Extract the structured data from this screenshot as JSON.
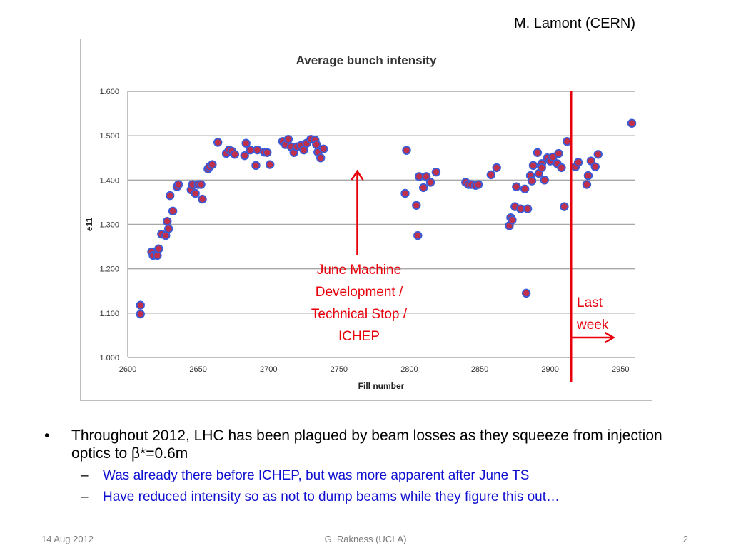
{
  "slide": {
    "attribution": "M. Lamont (CERN)",
    "annotations": {
      "june": [
        "June Machine",
        "Development /",
        "Technical Stop /",
        "ICHEP"
      ],
      "last": [
        "Last",
        "week"
      ]
    },
    "bullets": [
      {
        "text": "Throughout 2012, LHC has been plagued by beam losses as they squeeze from injection optics to β*=0.6m",
        "subs": [
          "Was already there before ICHEP, but was more apparent after June TS",
          "Have reduced intensity so as not to dump beams while they figure this out…"
        ]
      }
    ],
    "footer": {
      "date": "14 Aug 2012",
      "author": "G. Rakness (UCLA)",
      "page": "2"
    },
    "bullet_symbol": "•",
    "sub_symbol": "–"
  },
  "chart_data": {
    "type": "scatter",
    "title": "Average bunch intensity",
    "xlabel": "Fill number",
    "ylabel": "e11",
    "xlim": [
      2600,
      2960
    ],
    "ylim": [
      1.0,
      1.6
    ],
    "xticks": [
      2600,
      2650,
      2700,
      2750,
      2800,
      2850,
      2900,
      2950
    ],
    "yticks": [
      "1.000",
      "1.100",
      "1.200",
      "1.300",
      "1.400",
      "1.500",
      "1.600"
    ],
    "grid": "horizontal",
    "marker_color": "#c0304a",
    "marker_edge_color": "#3b5bd6",
    "annotation_color": "#e8000b",
    "annotation_arrow_x": 2763,
    "annotation_arrow_y": [
      1.23,
      1.42
    ],
    "last_week_line_x": 2915,
    "last_week_arrow_x": [
      2915,
      2945
    ],
    "last_week_arrow_y": 1.045,
    "points": [
      [
        2609,
        1.118
      ],
      [
        2609,
        1.098
      ],
      [
        2617,
        1.238
      ],
      [
        2618,
        1.23
      ],
      [
        2621,
        1.23
      ],
      [
        2622,
        1.245
      ],
      [
        2624,
        1.278
      ],
      [
        2627,
        1.275
      ],
      [
        2628,
        1.307
      ],
      [
        2629,
        1.29
      ],
      [
        2630,
        1.365
      ],
      [
        2632,
        1.33
      ],
      [
        2635,
        1.385
      ],
      [
        2636,
        1.39
      ],
      [
        2645,
        1.378
      ],
      [
        2646,
        1.39
      ],
      [
        2648,
        1.37
      ],
      [
        2650,
        1.39
      ],
      [
        2652,
        1.39
      ],
      [
        2653,
        1.357
      ],
      [
        2657,
        1.425
      ],
      [
        2658,
        1.43
      ],
      [
        2660,
        1.435
      ],
      [
        2664,
        1.485
      ],
      [
        2670,
        1.46
      ],
      [
        2672,
        1.468
      ],
      [
        2674,
        1.465
      ],
      [
        2676,
        1.458
      ],
      [
        2683,
        1.455
      ],
      [
        2684,
        1.483
      ],
      [
        2687,
        1.468
      ],
      [
        2691,
        1.433
      ],
      [
        2692,
        1.468
      ],
      [
        2697,
        1.463
      ],
      [
        2699,
        1.462
      ],
      [
        2701,
        1.435
      ],
      [
        2710,
        1.487
      ],
      [
        2712,
        1.48
      ],
      [
        2714,
        1.492
      ],
      [
        2716,
        1.475
      ],
      [
        2718,
        1.462
      ],
      [
        2720,
        1.475
      ],
      [
        2723,
        1.478
      ],
      [
        2725,
        1.468
      ],
      [
        2727,
        1.483
      ],
      [
        2730,
        1.492
      ],
      [
        2733,
        1.49
      ],
      [
        2734,
        1.48
      ],
      [
        2735,
        1.463
      ],
      [
        2737,
        1.45
      ],
      [
        2739,
        1.47
      ],
      [
        2797,
        1.37
      ],
      [
        2798,
        1.467
      ],
      [
        2805,
        1.343
      ],
      [
        2806,
        1.275
      ],
      [
        2807,
        1.408
      ],
      [
        2810,
        1.383
      ],
      [
        2812,
        1.408
      ],
      [
        2815,
        1.395
      ],
      [
        2819,
        1.418
      ],
      [
        2840,
        1.395
      ],
      [
        2842,
        1.39
      ],
      [
        2844,
        1.39
      ],
      [
        2847,
        1.388
      ],
      [
        2849,
        1.39
      ],
      [
        2858,
        1.412
      ],
      [
        2862,
        1.428
      ],
      [
        2871,
        1.297
      ],
      [
        2872,
        1.315
      ],
      [
        2873,
        1.31
      ],
      [
        2875,
        1.34
      ],
      [
        2876,
        1.385
      ],
      [
        2879,
        1.335
      ],
      [
        2882,
        1.38
      ],
      [
        2883,
        1.145
      ],
      [
        2884,
        1.335
      ],
      [
        2886,
        1.41
      ],
      [
        2887,
        1.398
      ],
      [
        2888,
        1.433
      ],
      [
        2891,
        1.462
      ],
      [
        2892,
        1.415
      ],
      [
        2894,
        1.437
      ],
      [
        2894,
        1.428
      ],
      [
        2896,
        1.4
      ],
      [
        2898,
        1.45
      ],
      [
        2900,
        1.443
      ],
      [
        2902,
        1.452
      ],
      [
        2905,
        1.437
      ],
      [
        2906,
        1.46
      ],
      [
        2908,
        1.428
      ],
      [
        2910,
        1.34
      ],
      [
        2912,
        1.487
      ],
      [
        2918,
        1.43
      ],
      [
        2920,
        1.44
      ],
      [
        2926,
        1.39
      ],
      [
        2927,
        1.41
      ],
      [
        2929,
        1.443
      ],
      [
        2932,
        1.43
      ],
      [
        2934,
        1.458
      ],
      [
        2958,
        1.528
      ]
    ]
  }
}
